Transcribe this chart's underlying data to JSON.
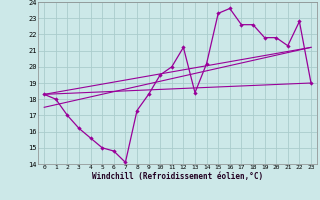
{
  "xlabel": "Windchill (Refroidissement éolien,°C)",
  "bg_color": "#cce8e8",
  "grid_color": "#aacccc",
  "line_color": "#990099",
  "xlim": [
    -0.5,
    23.5
  ],
  "ylim": [
    14,
    24
  ],
  "xticks": [
    0,
    1,
    2,
    3,
    4,
    5,
    6,
    7,
    8,
    9,
    10,
    11,
    12,
    13,
    14,
    15,
    16,
    17,
    18,
    19,
    20,
    21,
    22,
    23
  ],
  "yticks": [
    14,
    15,
    16,
    17,
    18,
    19,
    20,
    21,
    22,
    23,
    24
  ],
  "series1_x": [
    0,
    1,
    2,
    3,
    4,
    5,
    6,
    7,
    8,
    9,
    10,
    11,
    12,
    13,
    14,
    15,
    16,
    17,
    18,
    19,
    20,
    21,
    22,
    23
  ],
  "series1_y": [
    18.3,
    18.0,
    17.0,
    16.2,
    15.6,
    15.0,
    14.8,
    14.1,
    17.3,
    18.3,
    19.5,
    20.0,
    21.2,
    18.4,
    20.2,
    23.3,
    23.6,
    22.6,
    22.6,
    21.8,
    21.8,
    21.3,
    22.8,
    19.0
  ],
  "series2_x": [
    0,
    23
  ],
  "series2_y": [
    18.3,
    19.0
  ],
  "series3_x": [
    0,
    23
  ],
  "series3_y": [
    17.5,
    21.2
  ],
  "series4_x": [
    0,
    23
  ],
  "series4_y": [
    18.3,
    21.2
  ]
}
